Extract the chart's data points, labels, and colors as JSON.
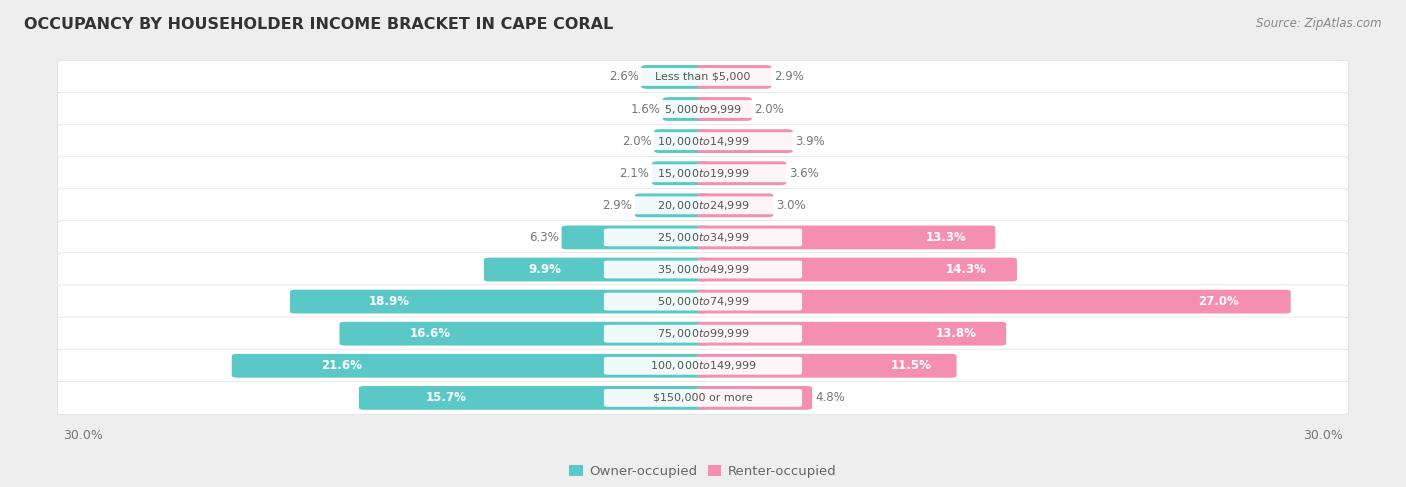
{
  "title": "OCCUPANCY BY HOUSEHOLDER INCOME BRACKET IN CAPE CORAL",
  "source": "Source: ZipAtlas.com",
  "categories": [
    "Less than $5,000",
    "$5,000 to $9,999",
    "$10,000 to $14,999",
    "$15,000 to $19,999",
    "$20,000 to $24,999",
    "$25,000 to $34,999",
    "$35,000 to $49,999",
    "$50,000 to $74,999",
    "$75,000 to $99,999",
    "$100,000 to $149,999",
    "$150,000 or more"
  ],
  "owner_values": [
    2.6,
    1.6,
    2.0,
    2.1,
    2.9,
    6.3,
    9.9,
    18.9,
    16.6,
    21.6,
    15.7
  ],
  "renter_values": [
    2.9,
    2.0,
    3.9,
    3.6,
    3.0,
    13.3,
    14.3,
    27.0,
    13.8,
    11.5,
    4.8
  ],
  "owner_color": "#5BC8C8",
  "renter_color": "#F48FB1",
  "background_color": "#eeeeee",
  "row_bg_color": "#ffffff",
  "axis_label_left": "30.0%",
  "axis_label_right": "30.0%",
  "max_val": 30.0,
  "title_fontsize": 11.5,
  "source_fontsize": 8.5,
  "legend_fontsize": 9.5,
  "bar_label_fontsize": 8.5,
  "category_fontsize": 8.0,
  "inside_label_threshold": 8.0
}
